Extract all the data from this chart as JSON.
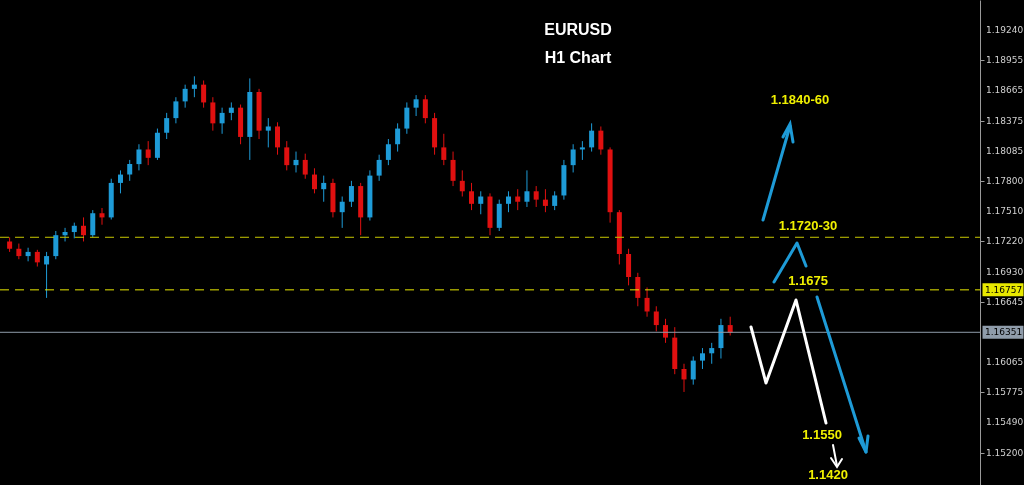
{
  "chart_data": {
    "type": "candlestick",
    "title": "EURUSD",
    "subtitle": "H1 Chart",
    "categories": [
      null,
      null,
      null,
      null,
      null,
      null,
      null,
      null,
      null,
      null,
      null,
      null,
      null,
      null,
      null,
      null,
      null,
      null,
      null,
      null,
      null,
      null,
      null,
      null,
      null,
      null,
      null,
      null,
      null,
      null,
      null,
      null,
      null,
      null,
      null,
      null,
      null,
      null,
      null,
      null,
      null,
      null,
      null,
      null,
      null,
      null,
      null,
      null,
      null,
      null,
      null,
      null,
      null,
      null,
      null,
      null,
      null,
      null,
      null,
      null,
      null,
      null,
      null,
      null,
      null,
      null,
      null,
      null,
      null,
      null,
      null,
      null,
      null,
      null,
      null,
      null,
      null,
      null,
      null,
      null,
      null,
      null,
      null,
      null,
      null,
      null,
      null,
      null,
      null,
      null,
      null,
      null,
      null,
      null,
      null,
      null,
      null,
      null,
      null,
      null,
      null,
      null,
      null,
      null,
      null
    ],
    "ohlc": [
      [
        1.1722,
        1.1726,
        1.1712,
        1.1715
      ],
      [
        1.1715,
        1.172,
        1.1705,
        1.1708
      ],
      [
        1.1708,
        1.1716,
        1.1703,
        1.1712
      ],
      [
        1.1712,
        1.1714,
        1.1698,
        1.1702
      ],
      [
        1.17,
        1.1712,
        1.1668,
        1.1708
      ],
      [
        1.1708,
        1.1732,
        1.1705,
        1.1728
      ],
      [
        1.1728,
        1.1735,
        1.1722,
        1.1731
      ],
      [
        1.1731,
        1.174,
        1.1725,
        1.1737
      ],
      [
        1.1737,
        1.1745,
        1.1722,
        1.1728
      ],
      [
        1.1728,
        1.1752,
        1.1726,
        1.1749
      ],
      [
        1.1749,
        1.1754,
        1.1738,
        1.1745
      ],
      [
        1.1745,
        1.1782,
        1.1743,
        1.1778
      ],
      [
        1.1778,
        1.179,
        1.1768,
        1.1786
      ],
      [
        1.1786,
        1.18,
        1.178,
        1.1796
      ],
      [
        1.1796,
        1.1815,
        1.179,
        1.181
      ],
      [
        1.181,
        1.1818,
        1.1795,
        1.1802
      ],
      [
        1.1802,
        1.183,
        1.18,
        1.1826
      ],
      [
        1.1826,
        1.1845,
        1.182,
        1.184
      ],
      [
        1.184,
        1.186,
        1.1835,
        1.1856
      ],
      [
        1.1856,
        1.1872,
        1.185,
        1.1868
      ],
      [
        1.1868,
        1.188,
        1.186,
        1.1872
      ],
      [
        1.1872,
        1.1876,
        1.185,
        1.1855
      ],
      [
        1.1855,
        1.186,
        1.1828,
        1.1835
      ],
      [
        1.1835,
        1.185,
        1.1825,
        1.1845
      ],
      [
        1.1845,
        1.1855,
        1.1838,
        1.185
      ],
      [
        1.185,
        1.1853,
        1.1815,
        1.1822
      ],
      [
        1.1822,
        1.1878,
        1.18,
        1.1865
      ],
      [
        1.1865,
        1.1868,
        1.182,
        1.1828
      ],
      [
        1.1828,
        1.184,
        1.1812,
        1.1832
      ],
      [
        1.1832,
        1.1836,
        1.1805,
        1.1812
      ],
      [
        1.1812,
        1.1818,
        1.179,
        1.1795
      ],
      [
        1.1795,
        1.1808,
        1.1788,
        1.18
      ],
      [
        1.18,
        1.1806,
        1.1782,
        1.1786
      ],
      [
        1.1786,
        1.1792,
        1.1768,
        1.1772
      ],
      [
        1.1772,
        1.1785,
        1.176,
        1.1778
      ],
      [
        1.1778,
        1.1782,
        1.1745,
        1.175
      ],
      [
        1.175,
        1.1765,
        1.1735,
        1.176
      ],
      [
        1.176,
        1.178,
        1.1755,
        1.1775
      ],
      [
        1.1775,
        1.1778,
        1.1728,
        1.1745
      ],
      [
        1.1745,
        1.179,
        1.1742,
        1.1785
      ],
      [
        1.1785,
        1.1805,
        1.178,
        1.18
      ],
      [
        1.18,
        1.182,
        1.1795,
        1.1815
      ],
      [
        1.1815,
        1.1835,
        1.1808,
        1.183
      ],
      [
        1.183,
        1.1855,
        1.1825,
        1.185
      ],
      [
        1.185,
        1.1862,
        1.1842,
        1.1858
      ],
      [
        1.1858,
        1.1862,
        1.1835,
        1.184
      ],
      [
        1.184,
        1.1845,
        1.1805,
        1.1812
      ],
      [
        1.1812,
        1.1825,
        1.1795,
        1.18
      ],
      [
        1.18,
        1.1808,
        1.1775,
        1.178
      ],
      [
        1.178,
        1.179,
        1.1765,
        1.177
      ],
      [
        1.177,
        1.1778,
        1.1752,
        1.1758
      ],
      [
        1.1758,
        1.177,
        1.1748,
        1.1765
      ],
      [
        1.1765,
        1.1768,
        1.1728,
        1.1735
      ],
      [
        1.1735,
        1.1762,
        1.1732,
        1.1758
      ],
      [
        1.1758,
        1.177,
        1.175,
        1.1765
      ],
      [
        1.1765,
        1.1772,
        1.1752,
        1.176
      ],
      [
        1.176,
        1.179,
        1.1755,
        1.177
      ],
      [
        1.177,
        1.1775,
        1.1755,
        1.1762
      ],
      [
        1.1762,
        1.1772,
        1.175,
        1.1756
      ],
      [
        1.1756,
        1.177,
        1.1752,
        1.1766
      ],
      [
        1.1766,
        1.18,
        1.1762,
        1.1795
      ],
      [
        1.1795,
        1.1815,
        1.1788,
        1.181
      ],
      [
        1.181,
        1.1818,
        1.18,
        1.1812
      ],
      [
        1.1812,
        1.1835,
        1.1808,
        1.1828
      ],
      [
        1.1828,
        1.1832,
        1.1805,
        1.181
      ],
      [
        1.181,
        1.1812,
        1.174,
        1.175
      ],
      [
        1.175,
        1.1752,
        1.17,
        1.171
      ],
      [
        1.171,
        1.1715,
        1.168,
        1.1688
      ],
      [
        1.1688,
        1.1692,
        1.166,
        1.1668
      ],
      [
        1.1668,
        1.1678,
        1.165,
        1.1655
      ],
      [
        1.1655,
        1.166,
        1.1636,
        1.1642
      ],
      [
        1.1642,
        1.1648,
        1.1625,
        1.163
      ],
      [
        1.163,
        1.164,
        1.1595,
        1.16
      ],
      [
        1.16,
        1.1605,
        1.1578,
        1.159
      ],
      [
        1.159,
        1.1612,
        1.1585,
        1.1608
      ],
      [
        1.1608,
        1.162,
        1.16,
        1.1615
      ],
      [
        1.1615,
        1.1625,
        1.1605,
        1.162
      ],
      [
        1.162,
        1.1648,
        1.161,
        1.1642
      ],
      [
        1.1642,
        1.165,
        1.1632,
        1.1635
      ],
      null,
      null,
      null,
      null,
      null,
      null,
      null,
      null,
      null,
      null,
      null,
      null,
      null,
      null,
      null,
      null,
      null,
      null,
      null,
      null,
      null,
      null,
      null,
      null,
      null,
      null
    ],
    "colors": [
      "#e01010",
      "#e01010",
      "#1e9bd7",
      "#e01010",
      "#1e9bd7",
      "#1e9bd7",
      "#1e9bd7",
      "#1e9bd7",
      "#e01010",
      "#1e9bd7",
      "#e01010",
      "#1e9bd7",
      "#1e9bd7",
      "#1e9bd7",
      "#1e9bd7",
      "#e01010",
      "#1e9bd7",
      "#1e9bd7",
      "#1e9bd7",
      "#1e9bd7",
      "#1e9bd7",
      "#e01010",
      "#e01010",
      "#1e9bd7",
      "#1e9bd7",
      "#e01010",
      "#1e9bd7",
      "#e01010",
      "#1e9bd7",
      "#e01010",
      "#e01010",
      "#1e9bd7",
      "#e01010",
      "#e01010",
      "#1e9bd7",
      "#e01010",
      "#1e9bd7",
      "#1e9bd7",
      "#e01010",
      "#1e9bd7",
      "#1e9bd7",
      "#1e9bd7",
      "#1e9bd7",
      "#1e9bd7",
      "#1e9bd7",
      "#e01010",
      "#e01010",
      "#e01010",
      "#e01010",
      "#e01010",
      "#e01010",
      "#1e9bd7",
      "#e01010",
      "#1e9bd7",
      "#1e9bd7",
      "#e01010",
      "#1e9bd7",
      "#e01010",
      "#e01010",
      "#1e9bd7",
      "#1e9bd7",
      "#1e9bd7",
      "#1e9bd7",
      "#1e9bd7",
      "#e01010",
      "#e01010",
      "#e01010",
      "#e01010",
      "#e01010",
      "#e01010",
      "#e01010",
      "#e01010",
      "#e01010",
      "#e01010",
      "#1e9bd7",
      "#1e9bd7",
      "#1e9bd7",
      "#1e9bd7",
      "#e01010",
      null,
      null,
      null,
      null,
      null,
      null,
      null,
      null,
      null,
      null,
      null,
      null,
      null,
      null,
      null,
      null,
      null,
      null,
      null,
      null,
      null,
      null,
      null,
      null,
      null,
      null
    ],
    "ylim": [
      1.1489,
      1.1953
    ],
    "yticks": [
      {
        "value": 1.1924,
        "label": "1.19240"
      },
      1.18955,
      1.18665,
      1.18375,
      1.18085,
      {
        "value": 1.178,
        "label": "1.17800"
      },
      {
        "value": 1.1751,
        "label": "1.17510"
      },
      {
        "value": 1.1722,
        "label": "1.17220"
      },
      {
        "value": 1.1693,
        "label": "1.16930"
      },
      1.16645,
      1.16065,
      1.15775,
      {
        "value": 1.1549,
        "label": "1.15490"
      },
      {
        "value": 1.152,
        "label": "1.15200"
      }
    ],
    "tick_labels": "y",
    "ref_lines": [
      {
        "axis": "y",
        "value": 1.1726,
        "label": null,
        "color": "#c8c800",
        "line_style": "dashed"
      },
      {
        "axis": "y",
        "value": 1.16757,
        "label": "1.16757",
        "color": "#e8e800",
        "line_style": "dashed"
      },
      {
        "axis": "y",
        "value": 1.16351,
        "label": "1.16351",
        "color": "#8f9caa",
        "line_style": "solid"
      }
    ],
    "annotations": [
      "1.1840-60",
      "1.1720-30",
      "1.1675",
      "1.1550",
      "1.1420"
    ]
  }
}
